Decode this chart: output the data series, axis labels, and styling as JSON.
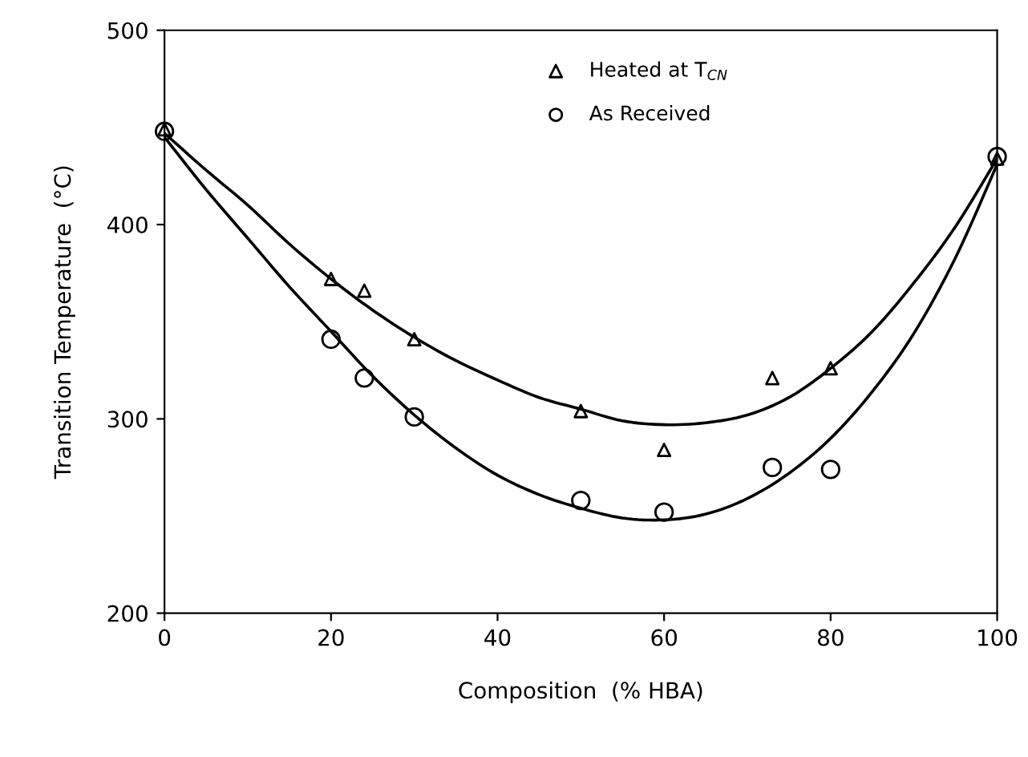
{
  "chart_data": {
    "type": "scatter",
    "xlabel": "Composition  (% HBA)",
    "ylabel": "Transition Temperature  (°C)",
    "xlim": [
      0,
      100
    ],
    "ylim": [
      200,
      500
    ],
    "xticks": [
      0,
      20,
      40,
      60,
      80,
      100
    ],
    "yticks": [
      200,
      300,
      400,
      500
    ],
    "grid": false,
    "legend": "top",
    "series": [
      {
        "name": "Heated at T$_{CN}$",
        "color": "#000000",
        "marker": "triangle",
        "x": [
          0,
          20,
          24,
          30,
          50,
          60,
          73,
          80,
          100
        ],
        "values": [
          449,
          372,
          366,
          341,
          304,
          284,
          321,
          326,
          434
        ]
      },
      {
        "name": "As Received",
        "color": "#000000",
        "marker": "circle",
        "x": [
          0,
          20,
          24,
          30,
          50,
          60,
          73,
          80,
          100
        ],
        "values": [
          448,
          341,
          321,
          301,
          258,
          252,
          275,
          274,
          435
        ]
      },
      {
        "type": "line",
        "color": "#000000",
        "marker": "none",
        "x": [
          0,
          5,
          10,
          15,
          20,
          25,
          30,
          35,
          40,
          45,
          50,
          55,
          60,
          65,
          70,
          75,
          80,
          85,
          90,
          95,
          100
        ],
        "values": [
          447,
          428,
          410,
          390,
          372,
          356,
          342,
          330,
          320,
          311,
          305,
          299,
          297,
          298,
          302,
          311,
          326,
          345,
          370,
          399,
          434
        ]
      },
      {
        "type": "line",
        "color": "#000000",
        "marker": "none",
        "x": [
          0,
          5,
          10,
          15,
          20,
          25,
          30,
          35,
          40,
          45,
          50,
          55,
          60,
          65,
          70,
          75,
          80,
          85,
          90,
          95,
          100
        ],
        "values": [
          445,
          418,
          393,
          368,
          345,
          322,
          302,
          285,
          271,
          261,
          254,
          249,
          248,
          251,
          259,
          272,
          290,
          314,
          344,
          383,
          431
        ]
      }
    ]
  }
}
